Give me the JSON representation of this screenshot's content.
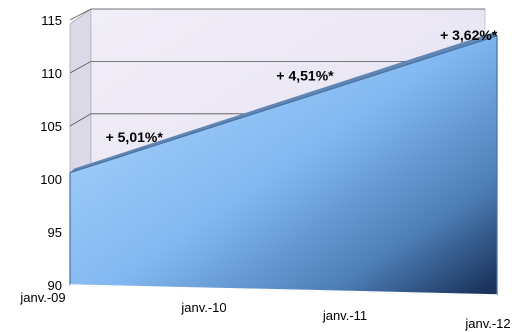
{
  "chart_data": {
    "type": "area",
    "title": "",
    "xlabel": "",
    "ylabel": "",
    "categories": [
      "janv.-09",
      "janv.-10",
      "janv.-11",
      "janv.-12"
    ],
    "x": [
      "janv.-09",
      "janv.-12"
    ],
    "series": [
      {
        "values": [
          100.6,
          113.5
        ]
      }
    ],
    "ylim": [
      90,
      115
    ],
    "yticks": [
      "90",
      "95",
      "100",
      "105",
      "110",
      "115"
    ],
    "grid": true,
    "three_d": true,
    "annotations": [
      {
        "text": "+ 5,01%*",
        "x": 0.25,
        "y": 103.5
      },
      {
        "text": "+ 4,51%*",
        "x": 1.45,
        "y": 109.3
      },
      {
        "text": "+ 3,62%*",
        "x": 2.6,
        "y": 113.1
      }
    ],
    "colors": {
      "wall": "#eae6f3",
      "area_top": "#9ccaf8",
      "area_mid": "#7fb6f0",
      "area_dark": "#1d3a66",
      "grid": "#555555"
    }
  }
}
